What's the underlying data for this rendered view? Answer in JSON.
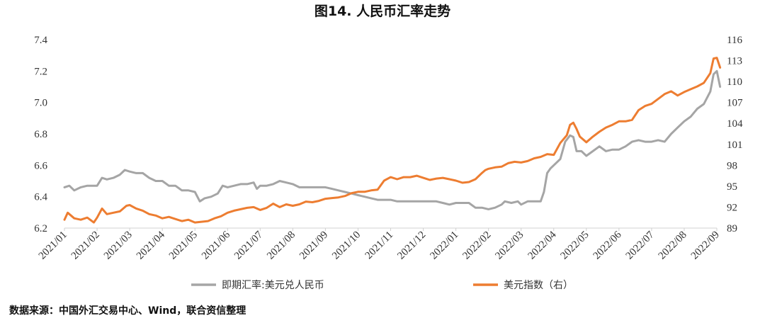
{
  "chart_data": {
    "type": "line",
    "title": "图14.  人民币汇率走势",
    "x_ticks": [
      "2021/01",
      "2021/02",
      "2021/03",
      "2021/04",
      "2021/05",
      "2021/06",
      "2021/07",
      "2021/08",
      "2021/09",
      "2021/10",
      "2021/11",
      "2021/12",
      "2022/01",
      "2022/02",
      "2022/03",
      "2022/04",
      "2022/05",
      "2022/06",
      "2022/07",
      "2022/08",
      "2022/09"
    ],
    "y_left": {
      "ticks": [
        "6.2",
        "6.4",
        "6.6",
        "6.8",
        "7.0",
        "7.2",
        "7.4"
      ],
      "ylim": [
        6.2,
        7.4
      ]
    },
    "y_right": {
      "ticks": [
        "89",
        "92",
        "95",
        "98",
        "101",
        "104",
        "107",
        "110",
        "113",
        "116"
      ],
      "ylim": [
        89,
        116
      ]
    },
    "grid": false,
    "legend_position": "bottom",
    "series": [
      {
        "name": "即期汇率:美元兑人民币",
        "axis": "left",
        "color": "#a5a5a5",
        "points": [
          [
            0.0,
            6.46
          ],
          [
            0.15,
            6.47
          ],
          [
            0.3,
            6.44
          ],
          [
            0.5,
            6.46
          ],
          [
            0.7,
            6.47
          ],
          [
            0.9,
            6.47
          ],
          [
            1.0,
            6.47
          ],
          [
            1.15,
            6.52
          ],
          [
            1.3,
            6.51
          ],
          [
            1.5,
            6.52
          ],
          [
            1.7,
            6.54
          ],
          [
            1.85,
            6.57
          ],
          [
            2.0,
            6.56
          ],
          [
            2.2,
            6.55
          ],
          [
            2.4,
            6.55
          ],
          [
            2.6,
            6.52
          ],
          [
            2.8,
            6.5
          ],
          [
            3.0,
            6.5
          ],
          [
            3.2,
            6.47
          ],
          [
            3.4,
            6.47
          ],
          [
            3.6,
            6.44
          ],
          [
            3.8,
            6.44
          ],
          [
            4.0,
            6.43
          ],
          [
            4.15,
            6.37
          ],
          [
            4.3,
            6.39
          ],
          [
            4.5,
            6.4
          ],
          [
            4.7,
            6.42
          ],
          [
            4.85,
            6.47
          ],
          [
            5.0,
            6.46
          ],
          [
            5.2,
            6.47
          ],
          [
            5.4,
            6.48
          ],
          [
            5.6,
            6.48
          ],
          [
            5.8,
            6.49
          ],
          [
            5.9,
            6.45
          ],
          [
            6.0,
            6.47
          ],
          [
            6.2,
            6.47
          ],
          [
            6.4,
            6.48
          ],
          [
            6.6,
            6.5
          ],
          [
            6.8,
            6.49
          ],
          [
            7.0,
            6.48
          ],
          [
            7.2,
            6.46
          ],
          [
            7.4,
            6.46
          ],
          [
            7.6,
            6.46
          ],
          [
            7.8,
            6.46
          ],
          [
            8.0,
            6.46
          ],
          [
            8.2,
            6.45
          ],
          [
            8.4,
            6.44
          ],
          [
            8.6,
            6.43
          ],
          [
            8.8,
            6.42
          ],
          [
            9.0,
            6.41
          ],
          [
            9.2,
            6.4
          ],
          [
            9.4,
            6.39
          ],
          [
            9.6,
            6.38
          ],
          [
            9.8,
            6.38
          ],
          [
            10.0,
            6.38
          ],
          [
            10.2,
            6.37
          ],
          [
            10.4,
            6.37
          ],
          [
            10.6,
            6.37
          ],
          [
            10.8,
            6.37
          ],
          [
            11.0,
            6.37
          ],
          [
            11.2,
            6.37
          ],
          [
            11.4,
            6.37
          ],
          [
            11.6,
            6.36
          ],
          [
            11.8,
            6.35
          ],
          [
            12.0,
            6.36
          ],
          [
            12.2,
            6.36
          ],
          [
            12.4,
            6.36
          ],
          [
            12.6,
            6.33
          ],
          [
            12.8,
            6.33
          ],
          [
            13.0,
            6.32
          ],
          [
            13.2,
            6.33
          ],
          [
            13.4,
            6.35
          ],
          [
            13.5,
            6.37
          ],
          [
            13.7,
            6.36
          ],
          [
            13.9,
            6.37
          ],
          [
            14.0,
            6.35
          ],
          [
            14.2,
            6.37
          ],
          [
            14.4,
            6.37
          ],
          [
            14.6,
            6.37
          ],
          [
            14.7,
            6.43
          ],
          [
            14.8,
            6.55
          ],
          [
            14.9,
            6.58
          ],
          [
            15.0,
            6.6
          ],
          [
            15.2,
            6.64
          ],
          [
            15.35,
            6.75
          ],
          [
            15.5,
            6.79
          ],
          [
            15.6,
            6.78
          ],
          [
            15.7,
            6.69
          ],
          [
            15.85,
            6.69
          ],
          [
            16.0,
            6.66
          ],
          [
            16.2,
            6.69
          ],
          [
            16.4,
            6.72
          ],
          [
            16.6,
            6.69
          ],
          [
            16.8,
            6.7
          ],
          [
            17.0,
            6.7
          ],
          [
            17.2,
            6.72
          ],
          [
            17.4,
            6.75
          ],
          [
            17.6,
            6.76
          ],
          [
            17.8,
            6.75
          ],
          [
            18.0,
            6.75
          ],
          [
            18.2,
            6.76
          ],
          [
            18.4,
            6.75
          ],
          [
            18.6,
            6.8
          ],
          [
            18.8,
            6.84
          ],
          [
            19.0,
            6.88
          ],
          [
            19.2,
            6.91
          ],
          [
            19.4,
            6.96
          ],
          [
            19.6,
            6.99
          ],
          [
            19.8,
            7.07
          ],
          [
            19.9,
            7.18
          ],
          [
            20.0,
            7.2
          ],
          [
            20.1,
            7.1
          ]
        ]
      },
      {
        "name": "美元指数（右）",
        "axis": "right",
        "color": "#ed7d31",
        "points": [
          [
            0.0,
            90.2
          ],
          [
            0.1,
            91.2
          ],
          [
            0.3,
            90.4
          ],
          [
            0.5,
            90.2
          ],
          [
            0.7,
            90.5
          ],
          [
            0.9,
            89.8
          ],
          [
            1.0,
            90.5
          ],
          [
            1.15,
            91.8
          ],
          [
            1.3,
            91.0
          ],
          [
            1.5,
            91.2
          ],
          [
            1.7,
            91.4
          ],
          [
            1.9,
            92.2
          ],
          [
            2.0,
            92.3
          ],
          [
            2.2,
            91.8
          ],
          [
            2.4,
            91.5
          ],
          [
            2.6,
            91.0
          ],
          [
            2.8,
            90.8
          ],
          [
            3.0,
            90.4
          ],
          [
            3.2,
            90.6
          ],
          [
            3.4,
            90.3
          ],
          [
            3.6,
            90.0
          ],
          [
            3.8,
            90.2
          ],
          [
            4.0,
            89.8
          ],
          [
            4.2,
            89.9
          ],
          [
            4.4,
            90.0
          ],
          [
            4.6,
            90.4
          ],
          [
            4.8,
            90.7
          ],
          [
            5.0,
            91.2
          ],
          [
            5.2,
            91.5
          ],
          [
            5.4,
            91.7
          ],
          [
            5.6,
            91.9
          ],
          [
            5.8,
            92.0
          ],
          [
            6.0,
            91.6
          ],
          [
            6.2,
            91.9
          ],
          [
            6.4,
            92.5
          ],
          [
            6.6,
            92.0
          ],
          [
            6.8,
            92.4
          ],
          [
            7.0,
            92.2
          ],
          [
            7.2,
            92.4
          ],
          [
            7.4,
            92.8
          ],
          [
            7.6,
            92.7
          ],
          [
            7.8,
            92.9
          ],
          [
            8.0,
            93.2
          ],
          [
            8.2,
            93.3
          ],
          [
            8.4,
            93.4
          ],
          [
            8.6,
            93.6
          ],
          [
            8.8,
            94.0
          ],
          [
            9.0,
            94.2
          ],
          [
            9.2,
            94.2
          ],
          [
            9.4,
            94.4
          ],
          [
            9.6,
            94.5
          ],
          [
            9.8,
            95.8
          ],
          [
            10.0,
            96.3
          ],
          [
            10.2,
            96.0
          ],
          [
            10.4,
            96.3
          ],
          [
            10.6,
            96.3
          ],
          [
            10.8,
            96.5
          ],
          [
            11.0,
            96.2
          ],
          [
            11.2,
            95.9
          ],
          [
            11.4,
            96.1
          ],
          [
            11.6,
            96.2
          ],
          [
            11.8,
            96.0
          ],
          [
            12.0,
            95.8
          ],
          [
            12.2,
            95.5
          ],
          [
            12.4,
            95.6
          ],
          [
            12.6,
            96.0
          ],
          [
            12.8,
            96.9
          ],
          [
            12.9,
            97.3
          ],
          [
            13.0,
            97.5
          ],
          [
            13.2,
            97.7
          ],
          [
            13.4,
            97.8
          ],
          [
            13.6,
            98.3
          ],
          [
            13.8,
            98.5
          ],
          [
            14.0,
            98.4
          ],
          [
            14.2,
            98.6
          ],
          [
            14.4,
            99.0
          ],
          [
            14.6,
            99.2
          ],
          [
            14.8,
            99.6
          ],
          [
            15.0,
            99.5
          ],
          [
            15.2,
            101.2
          ],
          [
            15.4,
            102.3
          ],
          [
            15.5,
            103.8
          ],
          [
            15.6,
            104.1
          ],
          [
            15.7,
            103.2
          ],
          [
            15.8,
            102.1
          ],
          [
            16.0,
            101.3
          ],
          [
            16.2,
            102.1
          ],
          [
            16.4,
            102.8
          ],
          [
            16.6,
            103.4
          ],
          [
            16.8,
            103.8
          ],
          [
            17.0,
            104.3
          ],
          [
            17.2,
            104.3
          ],
          [
            17.4,
            104.5
          ],
          [
            17.6,
            105.9
          ],
          [
            17.8,
            106.5
          ],
          [
            18.0,
            106.8
          ],
          [
            18.2,
            107.5
          ],
          [
            18.4,
            108.2
          ],
          [
            18.6,
            108.6
          ],
          [
            18.8,
            108.0
          ],
          [
            19.0,
            108.5
          ],
          [
            19.2,
            108.9
          ],
          [
            19.4,
            109.3
          ],
          [
            19.6,
            109.8
          ],
          [
            19.8,
            111.2
          ],
          [
            19.9,
            113.3
          ],
          [
            20.0,
            113.4
          ],
          [
            20.1,
            112.0
          ]
        ]
      }
    ]
  },
  "source": "数据来源：中国外汇交易中心、Wind，联合资信整理"
}
